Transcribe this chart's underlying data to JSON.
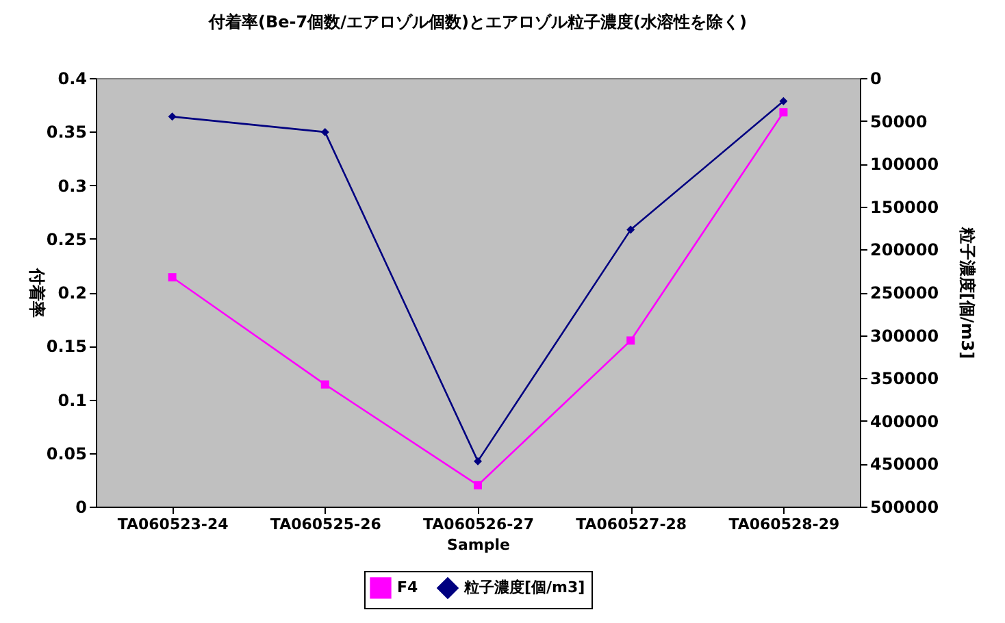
{
  "chart_data": {
    "type": "line",
    "title": "付着率(Be-7個数/エアロゾル個数)とエアロゾル粒子濃度(水溶性を除く)",
    "xlabel": "Sample",
    "ylabel": "付着率",
    "y2label": "粒子濃度[個/m3]",
    "categories": [
      "TA060523-24",
      "TA060525-26",
      "TA060526-27",
      "TA060527-28",
      "TA060528-29"
    ],
    "series": [
      {
        "name": "F4",
        "color": "#ff00ff",
        "marker": "square",
        "values": [
          0.214,
          0.114,
          0.02,
          0.155,
          0.368
        ]
      },
      {
        "name": "粒子濃度[個/m3]",
        "color": "#000080",
        "marker": "diamond",
        "axis": "y2",
        "values": [
          45000,
          63000,
          447000,
          177000,
          27000
        ]
      }
    ],
    "ylim": [
      0,
      0.4
    ],
    "yticks": [
      0,
      0.05,
      0.1,
      0.15,
      0.2,
      0.25,
      0.3,
      0.35,
      0.4
    ],
    "y2lim": [
      500000,
      0
    ],
    "y2ticks": [
      0,
      50000,
      100000,
      150000,
      200000,
      250000,
      300000,
      350000,
      400000,
      450000,
      500000
    ],
    "grid": false,
    "legend": "bottom",
    "line_style": "solid"
  }
}
